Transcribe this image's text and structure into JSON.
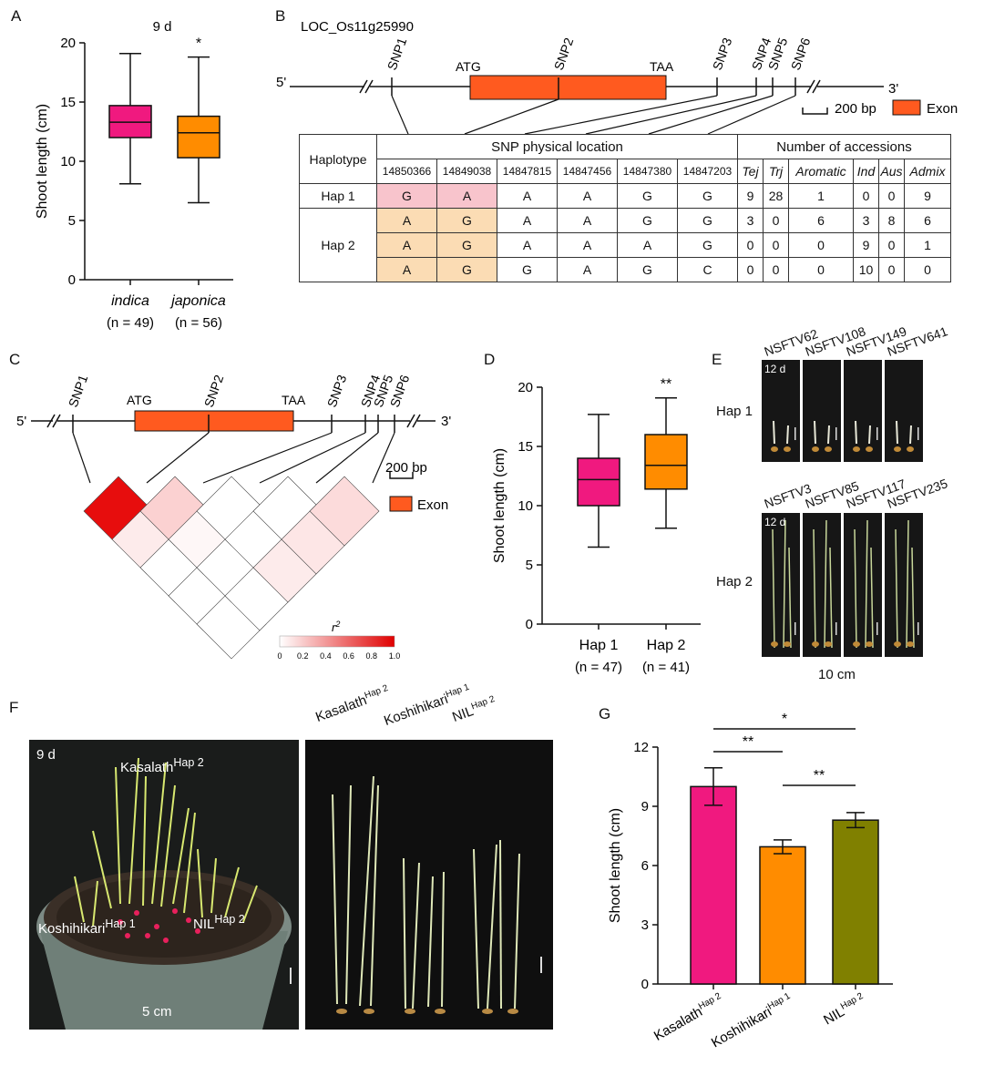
{
  "panels": {
    "a": "A",
    "b": "B",
    "c": "C",
    "d": "D",
    "e": "E",
    "f": "F",
    "g": "G"
  },
  "panel_a": {
    "title": "9 d",
    "ylabel": "Shoot length (cm)",
    "sig": "*",
    "yticks": [
      "0",
      "5",
      "10",
      "15",
      "20"
    ],
    "groups": [
      {
        "name": "indica",
        "n": "(n = 49)",
        "color": "#f0197f",
        "min": 8.1,
        "q1": 12.0,
        "median": 13.3,
        "q3": 14.7,
        "max": 19.1
      },
      {
        "name": "japonica",
        "n": "(n = 56)",
        "color": "#ff8c00",
        "min": 6.5,
        "q1": 10.3,
        "median": 12.4,
        "q3": 13.8,
        "max": 18.8
      }
    ]
  },
  "panel_b": {
    "gene": "LOC_Os11g25990",
    "five": "5'",
    "three": "3'",
    "atg": "ATG",
    "taa": "TAA",
    "snps": [
      "SNP1",
      "SNP2",
      "SNP3",
      "SNP4",
      "SNP5",
      "SNP6"
    ],
    "scale": "200 bp",
    "exon": "Exon",
    "exon_color": "#ff5a1f",
    "table": {
      "haplotype": "Haplotype",
      "snp_loc": "SNP physical location",
      "acc_header": "Number of accessions",
      "positions": [
        "14850366",
        "14849038",
        "14847815",
        "14847456",
        "14847380",
        "14847203"
      ],
      "groups": [
        "Tej",
        "Trj",
        "Aromatic",
        "Ind",
        "Aus",
        "Admix"
      ],
      "hap1": "Hap 1",
      "hap2": "Hap 2",
      "rows": [
        {
          "snps": [
            "G",
            "A",
            "A",
            "A",
            "G",
            "G"
          ],
          "counts": [
            "9",
            "28",
            "1",
            "0",
            "0",
            "9"
          ]
        },
        {
          "snps": [
            "A",
            "G",
            "A",
            "A",
            "G",
            "G"
          ],
          "counts": [
            "3",
            "0",
            "6",
            "3",
            "8",
            "6"
          ]
        },
        {
          "snps": [
            "A",
            "G",
            "A",
            "A",
            "A",
            "G"
          ],
          "counts": [
            "0",
            "0",
            "0",
            "9",
            "0",
            "1"
          ]
        },
        {
          "snps": [
            "A",
            "G",
            "G",
            "A",
            "G",
            "C"
          ],
          "counts": [
            "0",
            "0",
            "0",
            "10",
            "0",
            "0"
          ]
        }
      ]
    }
  },
  "panel_c": {
    "five": "5'",
    "three": "3'",
    "atg": "ATG",
    "taa": "TAA",
    "snps": [
      "SNP1",
      "SNP2",
      "SNP3",
      "SNP4",
      "SNP5",
      "SNP6"
    ],
    "scale": "200 bp",
    "exon": "Exon",
    "r2_label": "r",
    "r2_sup": "2",
    "legend_ticks": [
      "0",
      "0.2",
      "0.4",
      "0.6",
      "0.8",
      "1.0"
    ],
    "ld_r2": [
      [
        0.95,
        0.08,
        0.0,
        0.0,
        0.0
      ],
      [
        0.18,
        0.03,
        0.0,
        0.0
      ],
      [
        0.0,
        0.0,
        0.08
      ],
      [
        0.0,
        0.1
      ],
      [
        0.14
      ]
    ]
  },
  "panel_d": {
    "ylabel": "Shoot length (cm)",
    "sig": "**",
    "yticks": [
      "0",
      "5",
      "10",
      "15",
      "20"
    ],
    "groups": [
      {
        "name": "Hap 1",
        "n": "(n = 47)",
        "color": "#f0197f",
        "min": 6.5,
        "q1": 10.0,
        "median": 12.2,
        "q3": 14.0,
        "max": 17.7
      },
      {
        "name": "Hap 2",
        "n": "(n = 41)",
        "color": "#ff8c00",
        "min": 8.1,
        "q1": 11.4,
        "median": 13.4,
        "q3": 16.0,
        "max": 19.1
      }
    ]
  },
  "panel_e": {
    "hap1": "Hap 1",
    "hap2": "Hap 2",
    "day": "12 d",
    "scale": "10 cm",
    "hap1_lines": [
      "NSFTV62",
      "NSFTV108",
      "NSFTV149",
      "NSFTV641"
    ],
    "hap2_lines": [
      "NSFTV3",
      "NSFTV85",
      "NSFTV117",
      "NSFTV235"
    ]
  },
  "panel_f": {
    "day": "9 d",
    "scale": "5 cm",
    "pot_labels": [
      {
        "base": "Kasalath",
        "sup": "Hap 2"
      },
      {
        "base": "Koshihikari",
        "sup": "Hap 1"
      },
      {
        "base": "NIL",
        "sup": "Hap 2"
      }
    ],
    "col_labels": [
      {
        "base": "Kasalath",
        "sup": "Hap 2"
      },
      {
        "base": "Koshihikari",
        "sup": "Hap 1"
      },
      {
        "base": "NIL",
        "sup": "Hap 2"
      }
    ]
  },
  "chart_data": {
    "type": "bar",
    "ylabel": "Shoot length (cm)",
    "ylim": [
      0,
      12
    ],
    "yticks": [
      "0",
      "3",
      "6",
      "9",
      "12"
    ],
    "categories": [
      {
        "base": "Kasalath",
        "sup": "Hap 2"
      },
      {
        "base": "Koshihikari",
        "sup": "Hap 1"
      },
      {
        "base": "NIL",
        "sup": "Hap 2"
      }
    ],
    "values": [
      10.0,
      6.95,
      8.3
    ],
    "errors": [
      0.95,
      0.35,
      0.38
    ],
    "colors": [
      "#f0197f",
      "#ff8c00",
      "#808000"
    ],
    "significance": [
      {
        "pair": [
          0,
          1
        ],
        "label": "**"
      },
      {
        "pair": [
          0,
          2
        ],
        "label": "*"
      },
      {
        "pair": [
          1,
          2
        ],
        "label": "**"
      }
    ]
  }
}
